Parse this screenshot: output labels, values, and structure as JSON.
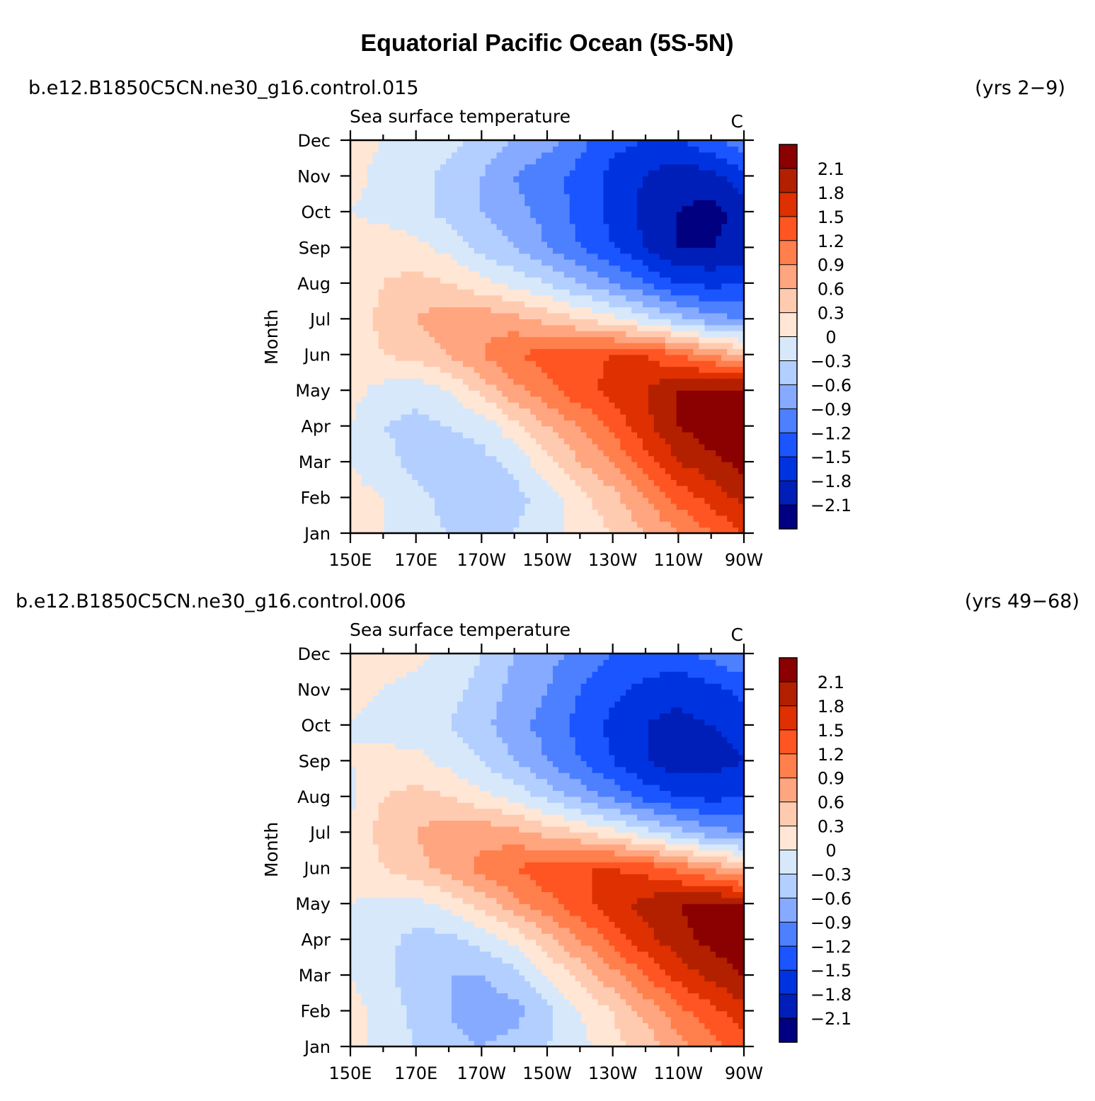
{
  "title": "Equatorial Pacific Ocean (5S-5N)",
  "colorbar": {
    "levels": [
      "2.1",
      "1.8",
      "1.5",
      "1.2",
      "0.9",
      "0.6",
      "0.3",
      "0",
      "−0.3",
      "−0.6",
      "−0.9",
      "−1.2",
      "−1.5",
      "−1.8",
      "−2.1"
    ],
    "colors": [
      "#8b0000",
      "#b22000",
      "#de3000",
      "#ff5522",
      "#ff7f4d",
      "#ffa57f",
      "#ffcbb0",
      "#ffe6d5",
      "#d7e8fb",
      "#b3cfff",
      "#86aaff",
      "#4d80ff",
      "#1a55ff",
      "#0033e0",
      "#001fb8",
      "#000080"
    ]
  },
  "chart_data": [
    {
      "type": "heatmap",
      "case_name": "b.e12.B1850C5CN.ne30_g16.control.015",
      "years": "(yrs 2−9)",
      "variable": "Sea surface temperature",
      "units": "C",
      "ylabel": "Month",
      "x_ticks": [
        "150E",
        "170E",
        "170W",
        "150W",
        "130W",
        "110W",
        "90W"
      ],
      "x": [
        150,
        160,
        170,
        180,
        190,
        200,
        210,
        220,
        230,
        240,
        250,
        260,
        270
      ],
      "y_ticks": [
        "Jan",
        "Feb",
        "Mar",
        "Apr",
        "May",
        "Jun",
        "Jul",
        "Aug",
        "Sep",
        "Oct",
        "Nov",
        "Dec"
      ],
      "values": [
        [
          0.1,
          0.0,
          -0.2,
          -0.3,
          -0.4,
          -0.3,
          -0.1,
          0.1,
          0.3,
          0.6,
          0.9,
          1.2,
          1.5
        ],
        [
          0.1,
          0.0,
          -0.2,
          -0.4,
          -0.6,
          -0.4,
          -0.2,
          0.2,
          0.5,
          0.9,
          1.3,
          1.6,
          1.9
        ],
        [
          0.0,
          -0.2,
          -0.4,
          -0.5,
          -0.4,
          -0.2,
          0.2,
          0.6,
          0.9,
          1.4,
          1.8,
          2.0,
          2.2
        ],
        [
          0.0,
          -0.3,
          -0.4,
          -0.3,
          -0.2,
          0.2,
          0.6,
          0.9,
          1.3,
          1.7,
          2.1,
          2.3,
          2.4
        ],
        [
          0.1,
          -0.1,
          -0.2,
          0.0,
          0.4,
          0.8,
          1.1,
          1.4,
          1.6,
          1.8,
          2.1,
          2.2,
          2.2
        ],
        [
          0.0,
          0.3,
          0.4,
          0.6,
          0.9,
          1.2,
          1.3,
          1.4,
          1.5,
          1.5,
          1.2,
          0.9,
          0.6
        ],
        [
          0.1,
          0.4,
          0.6,
          0.8,
          0.8,
          0.7,
          0.5,
          0.3,
          0.1,
          -0.2,
          -0.5,
          -0.8,
          -0.9
        ],
        [
          0.1,
          0.3,
          0.4,
          0.3,
          0.1,
          -0.1,
          -0.3,
          -0.6,
          -0.9,
          -1.2,
          -1.5,
          -1.6,
          -1.5
        ],
        [
          0.1,
          0.2,
          0.1,
          -0.1,
          -0.4,
          -0.6,
          -0.9,
          -1.2,
          -1.5,
          -1.8,
          -2.1,
          -2.1,
          -2.0
        ],
        [
          0.0,
          -0.1,
          -0.2,
          -0.4,
          -0.6,
          -0.8,
          -1.0,
          -1.3,
          -1.6,
          -1.9,
          -2.1,
          -2.2,
          -2.0
        ],
        [
          0.1,
          -0.1,
          -0.2,
          -0.4,
          -0.6,
          -0.9,
          -1.1,
          -1.3,
          -1.6,
          -1.8,
          -2.0,
          -1.9,
          -1.6
        ],
        [
          0.1,
          0.0,
          -0.1,
          -0.2,
          -0.4,
          -0.6,
          -0.8,
          -1.1,
          -1.4,
          -1.5,
          -1.5,
          -1.3,
          -1.0
        ]
      ]
    },
    {
      "type": "heatmap",
      "case_name": "b.e12.B1850C5CN.ne30_g16.control.006",
      "years": "(yrs 49−68)",
      "variable": "Sea surface temperature",
      "units": "C",
      "ylabel": "Month",
      "x_ticks": [
        "150E",
        "170E",
        "170W",
        "150W",
        "130W",
        "110W",
        "90W"
      ],
      "x": [
        150,
        160,
        170,
        180,
        190,
        200,
        210,
        220,
        230,
        240,
        250,
        260,
        270
      ],
      "y_ticks": [
        "Jan",
        "Feb",
        "Mar",
        "Apr",
        "May",
        "Jun",
        "Jul",
        "Aug",
        "Sep",
        "Oct",
        "Nov",
        "Dec"
      ],
      "values": [
        [
          0.1,
          -0.1,
          -0.3,
          -0.5,
          -0.6,
          -0.5,
          -0.3,
          -0.1,
          0.2,
          0.4,
          0.8,
          1.1,
          1.4
        ],
        [
          0.1,
          -0.1,
          -0.4,
          -0.6,
          -0.8,
          -0.7,
          -0.4,
          0.0,
          0.3,
          0.7,
          1.1,
          1.4,
          1.7
        ],
        [
          0.0,
          -0.2,
          -0.5,
          -0.6,
          -0.6,
          -0.4,
          0.0,
          0.4,
          0.8,
          1.2,
          1.6,
          1.9,
          2.1
        ],
        [
          -0.1,
          -0.2,
          -0.4,
          -0.4,
          -0.2,
          0.1,
          0.5,
          0.9,
          1.3,
          1.7,
          2.0,
          2.2,
          2.3
        ],
        [
          0.0,
          -0.1,
          -0.1,
          0.1,
          0.4,
          0.8,
          1.1,
          1.4,
          1.7,
          1.9,
          2.1,
          2.2,
          2.1
        ],
        [
          0.1,
          0.3,
          0.5,
          0.7,
          1.0,
          1.2,
          1.4,
          1.5,
          1.5,
          1.4,
          1.1,
          0.8,
          0.5
        ],
        [
          0.1,
          0.4,
          0.6,
          0.8,
          0.8,
          0.7,
          0.5,
          0.3,
          0.1,
          -0.2,
          -0.5,
          -0.8,
          -0.9
        ],
        [
          -0.1,
          0.3,
          0.4,
          0.3,
          0.1,
          -0.1,
          -0.4,
          -0.7,
          -1.0,
          -1.3,
          -1.5,
          -1.6,
          -1.5
        ],
        [
          0.0,
          0.1,
          0.1,
          -0.1,
          -0.3,
          -0.6,
          -0.9,
          -1.2,
          -1.5,
          -1.8,
          -2.0,
          -1.9,
          -1.8
        ],
        [
          0.0,
          -0.1,
          -0.2,
          -0.3,
          -0.5,
          -0.8,
          -1.0,
          -1.3,
          -1.6,
          -1.8,
          -1.9,
          -1.8,
          -1.7
        ],
        [
          0.1,
          0.0,
          -0.1,
          -0.2,
          -0.4,
          -0.7,
          -0.9,
          -1.2,
          -1.4,
          -1.6,
          -1.7,
          -1.6,
          -1.4
        ],
        [
          0.1,
          0.1,
          0.1,
          -0.1,
          -0.3,
          -0.6,
          -0.8,
          -1.0,
          -1.2,
          -1.3,
          -1.3,
          -1.1,
          -0.9
        ]
      ]
    }
  ]
}
